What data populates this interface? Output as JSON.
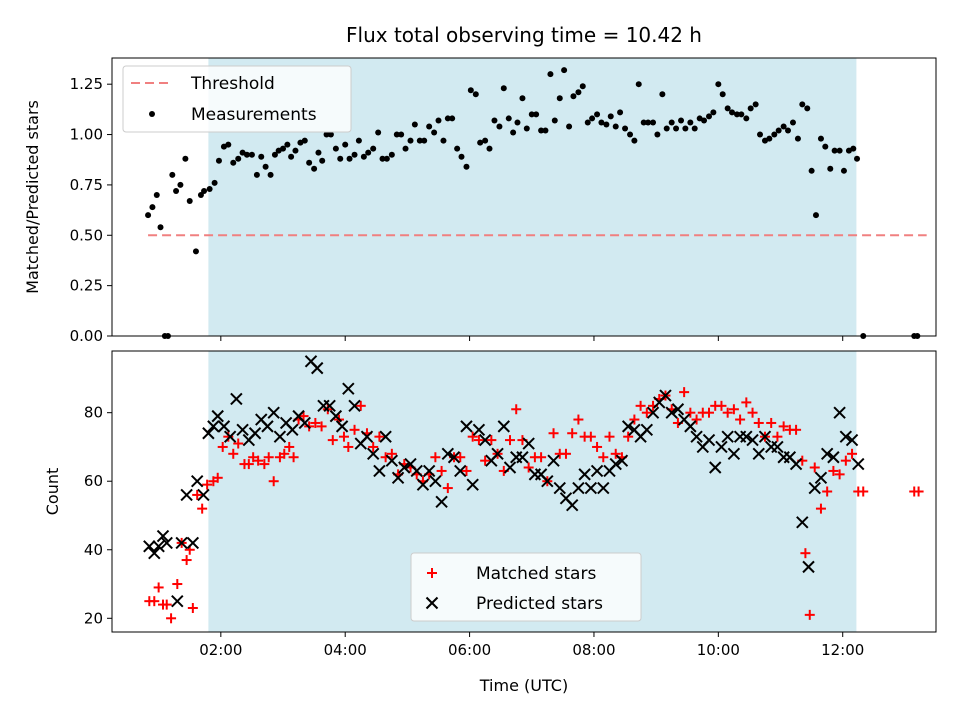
{
  "chart_data": {
    "title": "Flux total observing time = 10.42 h",
    "xlabel": "Time (UTC)",
    "x_unit": "hours UTC",
    "xlim": [
      0.25,
      13.5
    ],
    "x_tick_values": [
      2,
      4,
      6,
      8,
      10,
      12
    ],
    "x_tick_labels": [
      "02:00",
      "04:00",
      "06:00",
      "08:00",
      "10:00",
      "12:00"
    ],
    "shaded_interval": {
      "start": 1.8,
      "end": 12.22,
      "color": "#add8e6"
    },
    "panels": [
      {
        "type": "scatter",
        "ylabel": "Matched/Predicted stars",
        "ylim": [
          0,
          1.38
        ],
        "y_ticks": [
          "0.00",
          "0.25",
          "0.50",
          "0.75",
          "1.00",
          "1.25"
        ],
        "legend": {
          "position": "upper-left",
          "entries": [
            "Threshold",
            "Measurements"
          ]
        },
        "threshold": {
          "name": "Threshold",
          "y": 0.5,
          "x_range": [
            0.83,
            13.35
          ],
          "color": "#f08080"
        },
        "series": [
          {
            "name": "Measurements",
            "color": "#000000",
            "marker": "dot",
            "x": [
              0.83,
              0.9,
              0.97,
              1.03,
              1.1,
              1.15,
              1.22,
              1.28,
              1.35,
              1.43,
              1.5,
              1.6,
              1.68,
              1.73,
              1.82,
              1.9,
              1.97,
              2.05,
              2.12,
              2.2,
              2.28,
              2.35,
              2.42,
              2.5,
              2.58,
              2.65,
              2.72,
              2.8,
              2.87,
              2.93,
              3.0,
              3.07,
              3.13,
              3.2,
              3.28,
              3.35,
              3.42,
              3.5,
              3.57,
              3.63,
              3.7,
              3.77,
              3.85,
              3.92,
              4.0,
              4.07,
              4.15,
              4.22,
              4.3,
              4.37,
              4.45,
              4.53,
              4.6,
              4.67,
              4.75,
              4.83,
              4.9,
              4.97,
              5.05,
              5.12,
              5.2,
              5.27,
              5.35,
              5.43,
              5.5,
              5.58,
              5.65,
              5.72,
              5.8,
              5.87,
              5.95,
              6.02,
              6.1,
              6.17,
              6.25,
              6.32,
              6.4,
              6.48,
              6.55,
              6.63,
              6.7,
              6.77,
              6.85,
              6.92,
              7.0,
              7.07,
              7.15,
              7.22,
              7.3,
              7.37,
              7.45,
              7.52,
              7.6,
              7.67,
              7.75,
              7.82,
              7.9,
              7.97,
              8.05,
              8.12,
              8.2,
              8.27,
              8.35,
              8.42,
              8.5,
              8.58,
              8.65,
              8.72,
              8.8,
              8.87,
              8.95,
              9.02,
              9.1,
              9.17,
              9.25,
              9.32,
              9.4,
              9.47,
              9.55,
              9.62,
              9.7,
              9.77,
              9.85,
              9.92,
              10.0,
              10.07,
              10.15,
              10.22,
              10.3,
              10.37,
              10.45,
              10.52,
              10.6,
              10.67,
              10.75,
              10.82,
              10.9,
              10.97,
              11.05,
              11.12,
              11.2,
              11.28,
              11.35,
              11.43,
              11.5,
              11.57,
              11.65,
              11.72,
              11.8,
              11.87,
              11.95,
              12.02,
              12.1,
              12.17,
              12.23,
              12.33,
              13.15,
              13.2
            ],
            "y": [
              0.6,
              0.64,
              0.7,
              0.54,
              0.0,
              0.0,
              0.8,
              0.72,
              0.75,
              0.88,
              0.67,
              0.42,
              0.7,
              0.72,
              0.73,
              0.76,
              0.87,
              0.94,
              0.95,
              0.86,
              0.88,
              0.91,
              0.9,
              0.9,
              0.8,
              0.89,
              0.84,
              0.8,
              0.9,
              0.92,
              0.93,
              0.95,
              0.89,
              0.92,
              0.96,
              0.97,
              0.86,
              0.83,
              0.91,
              0.87,
              1.0,
              1.0,
              0.93,
              0.88,
              0.95,
              0.88,
              0.9,
              0.97,
              0.89,
              0.91,
              0.93,
              1.01,
              0.88,
              0.88,
              0.9,
              1.0,
              1.0,
              0.93,
              0.97,
              1.05,
              0.97,
              0.97,
              1.04,
              1.01,
              1.07,
              0.97,
              1.08,
              1.08,
              0.93,
              0.89,
              0.84,
              1.22,
              1.2,
              0.96,
              0.97,
              0.93,
              1.07,
              1.04,
              1.23,
              1.08,
              1.01,
              1.06,
              1.18,
              1.03,
              1.1,
              1.1,
              1.02,
              1.02,
              1.3,
              1.07,
              1.18,
              1.32,
              1.04,
              1.19,
              1.21,
              1.24,
              1.06,
              1.08,
              1.1,
              1.06,
              1.05,
              1.09,
              1.04,
              1.11,
              1.03,
              1.0,
              0.97,
              1.25,
              1.06,
              1.06,
              1.06,
              1.0,
              1.2,
              1.03,
              1.06,
              1.03,
              1.07,
              1.03,
              1.06,
              1.03,
              1.08,
              1.07,
              1.09,
              1.11,
              1.25,
              1.2,
              1.13,
              1.11,
              1.1,
              1.1,
              1.08,
              1.13,
              1.15,
              1.0,
              0.97,
              0.98,
              1.0,
              1.02,
              1.04,
              1.02,
              1.06,
              0.98,
              1.15,
              1.13,
              0.82,
              0.6,
              0.98,
              0.94,
              0.83,
              0.92,
              0.92,
              0.82,
              0.92,
              0.93,
              0.88,
              0.0,
              0.0,
              0.0
            ]
          }
        ]
      },
      {
        "type": "scatter",
        "ylabel": "Count",
        "ylim": [
          16,
          98
        ],
        "y_ticks": [
          "20",
          "40",
          "60",
          "80"
        ],
        "legend": {
          "position": "lower-center",
          "entries": [
            "Matched stars",
            "Predicted stars"
          ]
        },
        "series": [
          {
            "name": "Matched stars",
            "color": "#ff0000",
            "marker": "plus",
            "x": [
              0.85,
              0.93,
              1.0,
              1.07,
              1.13,
              1.2,
              1.3,
              1.37,
              1.45,
              1.5,
              1.55,
              1.62,
              1.7,
              1.78,
              1.88,
              1.95,
              2.03,
              2.12,
              2.2,
              2.28,
              2.38,
              2.45,
              2.52,
              2.6,
              2.7,
              2.77,
              2.85,
              2.95,
              3.02,
              3.1,
              3.17,
              3.25,
              3.33,
              3.42,
              3.52,
              3.62,
              3.72,
              3.8,
              3.9,
              3.98,
              4.05,
              4.15,
              4.25,
              4.35,
              4.45,
              4.55,
              4.65,
              4.75,
              4.85,
              4.95,
              5.05,
              5.15,
              5.25,
              5.35,
              5.45,
              5.55,
              5.65,
              5.75,
              5.85,
              5.95,
              6.05,
              6.15,
              6.25,
              6.35,
              6.45,
              6.55,
              6.65,
              6.75,
              6.85,
              6.95,
              7.05,
              7.15,
              7.25,
              7.35,
              7.45,
              7.55,
              7.65,
              7.75,
              7.85,
              7.95,
              8.05,
              8.15,
              8.25,
              8.35,
              8.45,
              8.55,
              8.65,
              8.75,
              8.85,
              8.95,
              9.05,
              9.15,
              9.25,
              9.35,
              9.45,
              9.55,
              9.65,
              9.75,
              9.85,
              9.95,
              10.05,
              10.15,
              10.25,
              10.35,
              10.45,
              10.55,
              10.65,
              10.75,
              10.85,
              10.95,
              11.05,
              11.15,
              11.25,
              11.35,
              11.4,
              11.47,
              11.55,
              11.65,
              11.75,
              11.85,
              11.95,
              12.05,
              12.15,
              12.25,
              12.33,
              13.15,
              13.22
            ],
            "y": [
              25,
              25,
              29,
              24,
              24,
              20,
              30,
              42,
              37,
              40,
              23,
              56,
              52,
              59,
              60,
              61,
              70,
              73,
              68,
              71,
              65,
              65,
              67,
              66,
              65,
              67,
              60,
              67,
              68,
              70,
              67,
              78,
              79,
              76,
              77,
              76,
              81,
              72,
              78,
              73,
              70,
              75,
              82,
              74,
              70,
              73,
              67,
              68,
              62,
              65,
              64,
              62,
              60,
              62,
              67,
              63,
              58,
              67,
              67,
              63,
              73,
              72,
              66,
              72,
              68,
              63,
              72,
              81,
              72,
              64,
              67,
              67,
              60,
              74,
              68,
              68,
              74,
              78,
              73,
              73,
              70,
              67,
              73,
              68,
              67,
              73,
              78,
              82,
              80,
              82,
              84,
              85,
              81,
              77,
              86,
              80,
              78,
              80,
              80,
              82,
              82,
              80,
              81,
              78,
              83,
              80,
              77,
              73,
              77,
              73,
              76,
              75,
              75,
              66,
              39,
              21,
              64,
              52,
              57,
              63,
              62,
              66,
              68,
              57,
              57,
              57,
              57
            ]
          },
          {
            "name": "Predicted stars",
            "color": "#000000",
            "marker": "cross",
            "x": [
              0.85,
              0.93,
              1.0,
              1.07,
              1.13,
              1.3,
              1.37,
              1.45,
              1.55,
              1.62,
              1.72,
              1.8,
              1.88,
              1.95,
              2.05,
              2.15,
              2.25,
              2.35,
              2.45,
              2.55,
              2.65,
              2.75,
              2.85,
              2.95,
              3.05,
              3.15,
              3.25,
              3.35,
              3.45,
              3.55,
              3.65,
              3.75,
              3.85,
              3.95,
              4.05,
              4.15,
              4.25,
              4.35,
              4.45,
              4.55,
              4.65,
              4.75,
              4.85,
              4.95,
              5.05,
              5.15,
              5.25,
              5.35,
              5.45,
              5.55,
              5.65,
              5.75,
              5.85,
              5.95,
              6.05,
              6.15,
              6.25,
              6.35,
              6.45,
              6.55,
              6.65,
              6.75,
              6.85,
              6.95,
              7.05,
              7.15,
              7.25,
              7.35,
              7.45,
              7.55,
              7.65,
              7.75,
              7.85,
              7.95,
              8.05,
              8.15,
              8.25,
              8.35,
              8.45,
              8.55,
              8.65,
              8.75,
              8.85,
              8.95,
              9.05,
              9.15,
              9.25,
              9.35,
              9.45,
              9.55,
              9.65,
              9.75,
              9.85,
              9.95,
              10.05,
              10.15,
              10.25,
              10.35,
              10.45,
              10.55,
              10.65,
              10.75,
              10.85,
              10.95,
              11.05,
              11.15,
              11.25,
              11.35,
              11.45,
              11.55,
              11.65,
              11.75,
              11.85,
              11.95,
              12.05,
              12.15,
              12.25
            ],
            "y": [
              41,
              39,
              41,
              44,
              42,
              25,
              42,
              56,
              42,
              60,
              56,
              74,
              76,
              79,
              76,
              73,
              84,
              75,
              72,
              74,
              78,
              76,
              80,
              73,
              77,
              75,
              79,
              77,
              95,
              93,
              82,
              82,
              79,
              76,
              87,
              82,
              71,
              73,
              68,
              63,
              73,
              66,
              61,
              64,
              65,
              63,
              59,
              63,
              60,
              54,
              68,
              67,
              63,
              76,
              59,
              75,
              72,
              66,
              68,
              76,
              64,
              67,
              67,
              71,
              62,
              62,
              60,
              66,
              58,
              55,
              53,
              58,
              62,
              58,
              63,
              58,
              63,
              65,
              66,
              76,
              75,
              73,
              75,
              80,
              83,
              85,
              80,
              81,
              78,
              76,
              73,
              70,
              72,
              64,
              70,
              73,
              68,
              73,
              73,
              72,
              68,
              73,
              70,
              70,
              67,
              67,
              65,
              48,
              35,
              58,
              61,
              68,
              67,
              80,
              73,
              72,
              65
            ]
          }
        ]
      }
    ]
  }
}
